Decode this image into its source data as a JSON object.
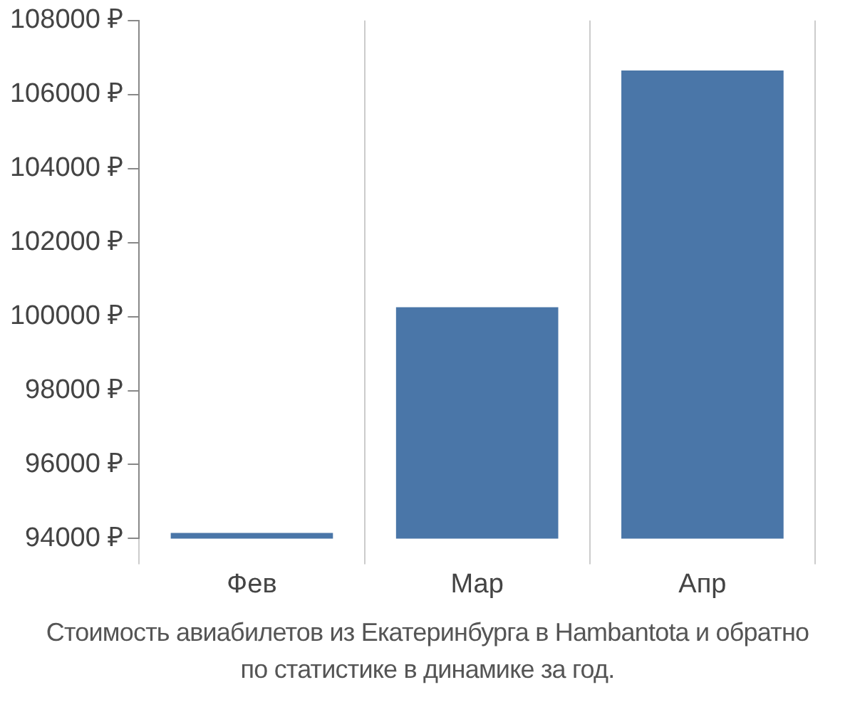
{
  "chart_data": {
    "type": "bar",
    "categories": [
      "Фев",
      "Мар",
      "Апр"
    ],
    "values": [
      94150,
      100250,
      106650
    ],
    "color": "#4a76a8",
    "ylim": [
      94000,
      108000
    ],
    "yticks": [
      {
        "value": 94000,
        "label": "94000 ₽"
      },
      {
        "value": 96000,
        "label": "96000 ₽"
      },
      {
        "value": 98000,
        "label": "98000 ₽"
      },
      {
        "value": 100000,
        "label": "100000 ₽"
      },
      {
        "value": 102000,
        "label": "102000 ₽"
      },
      {
        "value": 104000,
        "label": "104000 ₽"
      },
      {
        "value": 106000,
        "label": "106000 ₽"
      },
      {
        "value": 108000,
        "label": "108000 ₽"
      }
    ],
    "grid": "x",
    "annotations": [
      "Стоимость авиабилетов из Екатеринбурга в Hambantota и обратно",
      "по статистике в динамике за год."
    ]
  }
}
